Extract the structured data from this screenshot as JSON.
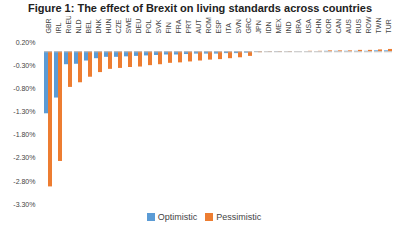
{
  "chart_data": {
    "type": "bar",
    "title": "Figure 1: The effect of Brexit on living standards across countries",
    "categories": [
      "GBR",
      "IRL",
      "RoEU",
      "NLD",
      "BEL",
      "DNK",
      "HUN",
      "CZE",
      "SWE",
      "DEU",
      "POL",
      "SVK",
      "FIN",
      "FRA",
      "PRT",
      "AUT",
      "ROM",
      "ESP",
      "ITA",
      "SVN",
      "GRC",
      "JPN",
      "IDN",
      "MEX",
      "IND",
      "BRA",
      "USA",
      "CHN",
      "KOR",
      "CAN",
      "AUS",
      "RUS",
      "ROW",
      "TWN",
      "TUR"
    ],
    "series": [
      {
        "name": "Optimistic",
        "color": "#5b9bd5",
        "values": [
          -1.34,
          -1.0,
          -0.28,
          -0.27,
          -0.2,
          -0.15,
          -0.12,
          -0.12,
          -0.11,
          -0.1,
          -0.09,
          -0.08,
          -0.07,
          -0.07,
          -0.06,
          -0.05,
          -0.05,
          -0.05,
          -0.04,
          -0.04,
          -0.03,
          -0.01,
          0,
          -0.005,
          0,
          0,
          0,
          0,
          0.01,
          0.01,
          0.01,
          0.01,
          0.01,
          0.02,
          0.02
        ]
      },
      {
        "name": "Pessimistic",
        "color": "#ed7d31",
        "values": [
          -2.92,
          -2.37,
          -0.77,
          -0.67,
          -0.55,
          -0.45,
          -0.38,
          -0.36,
          -0.34,
          -0.33,
          -0.3,
          -0.28,
          -0.25,
          -0.24,
          -0.22,
          -0.2,
          -0.18,
          -0.17,
          -0.15,
          -0.13,
          -0.1,
          -0.02,
          -0.01,
          -0.01,
          -0.01,
          0,
          0.01,
          0.01,
          0.02,
          0.02,
          0.02,
          0.03,
          0.03,
          0.04,
          0.05
        ]
      }
    ],
    "ylim": [
      -3.3,
      0.2
    ],
    "yticks": [
      {
        "value": 0.2,
        "label": "0.20%"
      },
      {
        "value": -0.3,
        "label": "-0.30%"
      },
      {
        "value": -0.8,
        "label": "-0.80%"
      },
      {
        "value": -1.3,
        "label": "-1.30%"
      },
      {
        "value": -1.8,
        "label": "-1.80%"
      },
      {
        "value": -2.3,
        "label": "-2.30%"
      },
      {
        "value": -2.8,
        "label": "-2.80%"
      },
      {
        "value": -3.3,
        "label": "-3.30%"
      }
    ],
    "grid": false,
    "legend": "bottom"
  }
}
